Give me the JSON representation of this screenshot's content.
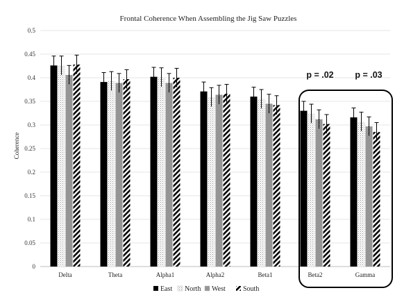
{
  "chart_data": {
    "type": "bar",
    "title": "Frontal Coherence When Assembling the Jig Saw Puzzles",
    "xlabel": "",
    "ylabel": "Coherence",
    "ylim": [
      0,
      0.5
    ],
    "yticks": [
      "0",
      "0.05",
      "0.1",
      "0.15",
      "0.2",
      "0.25",
      "0.3",
      "0.35",
      "0.4",
      "0.45",
      "0.5"
    ],
    "grid": true,
    "legend_position": "bottom",
    "categories": [
      "Delta",
      "Theta",
      "Alpha1",
      "Alpha2",
      "Beta1",
      "Beta2",
      "Gamma"
    ],
    "series": [
      {
        "name": "East",
        "pattern": "solid",
        "color": "#000000",
        "values": [
          0.426,
          0.391,
          0.402,
          0.371,
          0.36,
          0.33,
          0.316
        ],
        "errors": [
          0.02,
          0.02,
          0.02,
          0.02,
          0.02,
          0.02,
          0.02
        ]
      },
      {
        "name": "North",
        "pattern": "dots",
        "color": "#9a9a9a",
        "values": [
          0.426,
          0.393,
          0.401,
          0.359,
          0.355,
          0.324,
          0.307
        ],
        "errors": [
          0.02,
          0.02,
          0.02,
          0.02,
          0.02,
          0.02,
          0.02
        ]
      },
      {
        "name": "West",
        "pattern": "checker",
        "color": "#6e6e6e",
        "values": [
          0.406,
          0.389,
          0.389,
          0.364,
          0.345,
          0.312,
          0.297
        ],
        "errors": [
          0.02,
          0.02,
          0.02,
          0.02,
          0.02,
          0.02,
          0.02
        ]
      },
      {
        "name": "South",
        "pattern": "diagonal",
        "color": "#000000",
        "values": [
          0.428,
          0.397,
          0.4,
          0.366,
          0.342,
          0.302,
          0.285
        ],
        "errors": [
          0.02,
          0.02,
          0.02,
          0.02,
          0.02,
          0.02,
          0.02
        ]
      }
    ],
    "annotations": [
      {
        "text": "p = .02",
        "category": "Beta2"
      },
      {
        "text": "p = .03",
        "category": "Gamma"
      }
    ],
    "highlight_box": {
      "categories": [
        "Beta2",
        "Gamma"
      ],
      "color": "#000000"
    }
  }
}
